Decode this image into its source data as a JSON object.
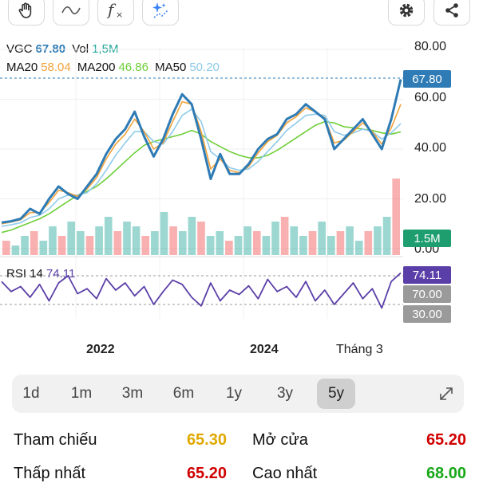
{
  "toolbar": {
    "left_icons": [
      "hand-pan-icon",
      "line-draw-icon",
      "function-fx-icon",
      "sparkle-ai-icon"
    ],
    "right_icons": [
      "gear-icon",
      "share-icon"
    ]
  },
  "legend": {
    "symbol": "VGC",
    "price": "67.80",
    "vol_label": "Vol",
    "vol_value": "1,5M",
    "ma20_label": "MA20",
    "ma20_value": "58.04",
    "ma200_label": "MA200",
    "ma200_value": "46.86",
    "ma50_label": "MA50",
    "ma50_value": "50.20",
    "rsi_label": "RSI 14",
    "rsi_value": "74.11"
  },
  "colors": {
    "price": "#2e7bb5",
    "ma20": "#f2a33a",
    "ma200": "#6fcf3a",
    "ma50": "#8fcaea",
    "rsi": "#5b3fa8",
    "vol_tag": "#1e9e6e",
    "level_tag": "#9a9a9a",
    "up": "#26a69a",
    "down": "#ef5350",
    "ref": "#e0a800",
    "red": "#d00000",
    "green": "#18a818"
  },
  "price_axis": [
    "80.00",
    "60.00",
    "40.00",
    "20.00",
    "0.00"
  ],
  "tags": {
    "price": "67.80",
    "volume": "1.5M",
    "rsi": "74.11",
    "rsi_upper": "70.00",
    "rsi_lower": "30.00"
  },
  "x_axis": [
    "2022",
    "2024",
    "Tháng 3"
  ],
  "periods": [
    "1d",
    "1m",
    "3m",
    "6m",
    "1y",
    "3y",
    "5y"
  ],
  "active_period": "5y",
  "stats": [
    {
      "label": "Tham chiếu",
      "value": "65.30"
    },
    {
      "label": "Mở cửa",
      "value": "65.20"
    },
    {
      "label": "Thấp nhất",
      "value": "65.20"
    },
    {
      "label": "Cao nhất",
      "value": "68.00"
    }
  ],
  "chart_data": {
    "type": "line",
    "y_range": [
      0,
      80
    ],
    "series": [
      {
        "name": "VGC",
        "values": [
          10.5,
          11,
          12,
          16,
          14,
          20,
          25,
          22,
          20,
          25,
          30,
          38,
          44,
          48,
          55,
          45,
          37,
          44,
          54,
          62,
          58,
          44,
          28,
          38,
          30,
          30,
          34,
          40,
          44,
          46,
          52,
          54,
          58,
          55,
          52,
          40,
          44,
          48,
          52,
          46,
          40,
          52,
          68
        ]
      },
      {
        "name": "MA20",
        "values": [
          10,
          10.7,
          11.6,
          14.5,
          14.5,
          18.5,
          23.5,
          22.5,
          21,
          24,
          28.5,
          36,
          42,
          46,
          52,
          47,
          40,
          42.5,
          51,
          59,
          58,
          47,
          32,
          36,
          31.5,
          30.5,
          33,
          38.5,
          43,
          45.5,
          50.5,
          53,
          56.5,
          55,
          52.5,
          42.5,
          43.5,
          47,
          50.5,
          47,
          42,
          48.5,
          58
        ]
      },
      {
        "name": "MA200",
        "values": [
          6.5,
          7.5,
          9,
          10.5,
          12,
          14,
          16.5,
          19,
          21.5,
          23,
          25,
          28,
          31.5,
          35,
          38.5,
          41.5,
          43,
          44,
          45,
          46,
          47.5,
          46,
          43,
          41,
          39,
          37.5,
          36.5,
          36.5,
          37.5,
          39.5,
          42,
          44.5,
          47,
          49.5,
          51,
          50.5,
          49,
          48.5,
          48,
          47.5,
          46.5,
          46,
          46.9
        ]
      },
      {
        "name": "MA50",
        "values": [
          9,
          9.6,
          10.4,
          12.5,
          13.4,
          16,
          20,
          21.5,
          21.5,
          22.5,
          26,
          31.5,
          37.5,
          42.5,
          47,
          47,
          43,
          42,
          47,
          53.5,
          56,
          51,
          39,
          36,
          32.5,
          31.5,
          32,
          35,
          39,
          43,
          47.5,
          50.5,
          53.5,
          54,
          53.5,
          47,
          45.5,
          46.5,
          48,
          47,
          44,
          46.5,
          50.2
        ]
      }
    ],
    "volume": [
      3,
      2,
      4,
      5,
      3,
      6,
      4,
      7,
      5,
      4,
      6,
      8,
      5,
      7,
      6,
      4,
      5,
      9,
      6,
      5,
      8,
      7,
      4,
      5,
      3,
      4,
      6,
      5,
      4,
      7,
      8,
      6,
      4,
      5,
      7,
      4,
      5,
      6,
      3,
      5,
      6,
      8,
      16
    ],
    "rsi": {
      "range": [
        10,
        90
      ],
      "levels": [
        70,
        30
      ],
      "values": [
        62,
        48,
        55,
        40,
        58,
        35,
        60,
        70,
        45,
        52,
        38,
        66,
        50,
        60,
        42,
        55,
        30,
        48,
        64,
        58,
        40,
        28,
        60,
        35,
        50,
        44,
        56,
        38,
        65,
        48,
        55,
        40,
        62,
        35,
        50,
        30,
        45,
        60,
        38,
        52,
        25,
        62,
        74
      ]
    }
  }
}
